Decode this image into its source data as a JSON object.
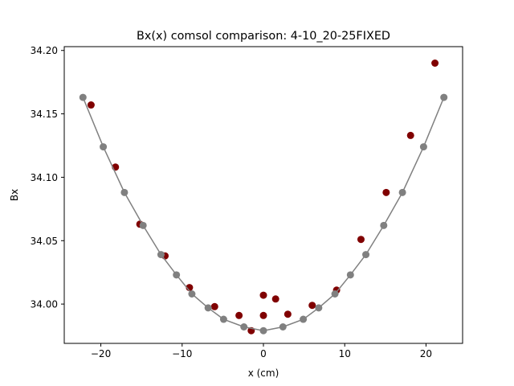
{
  "chart_data": {
    "type": "scatter",
    "title": "Bx(x) comsol comparison: 4-10_20-25FIXED",
    "xlabel": "x (cm)",
    "ylabel": "Bx",
    "xlim": [
      -24.5,
      24.5
    ],
    "ylim": [
      33.969,
      34.203
    ],
    "xticks": [
      -20,
      -10,
      0,
      10,
      20
    ],
    "yticks": [
      34.0,
      34.05,
      34.1,
      34.15,
      34.2
    ],
    "xtick_labels": [
      "−20",
      "−10",
      "0",
      "10",
      "20"
    ],
    "ytick_labels": [
      "34.00",
      "34.05",
      "34.10",
      "34.15",
      "34.20"
    ],
    "grid": false,
    "series": [
      {
        "style": "markers",
        "color": "#800000",
        "x": [
          -21.2,
          -18.2,
          -15.2,
          -12.1,
          -9.1,
          -6.0,
          -3.0,
          -1.5,
          0.0,
          0.0,
          1.5,
          3.0,
          6.0,
          9.0,
          12.0,
          15.1,
          18.1,
          21.1
        ],
        "y": [
          34.157,
          34.108,
          34.063,
          34.038,
          34.013,
          33.998,
          33.991,
          33.979,
          34.007,
          33.991,
          34.004,
          33.992,
          33.999,
          34.011,
          34.051,
          34.088,
          34.133,
          34.19
        ]
      },
      {
        "style": "line+markers",
        "color": "#808080",
        "x": [
          -22.2,
          -19.7,
          -17.1,
          -14.8,
          -12.6,
          -10.7,
          -8.8,
          -6.8,
          -4.9,
          -2.4,
          0.0,
          2.4,
          4.9,
          6.8,
          8.8,
          10.7,
          12.6,
          14.8,
          17.1,
          19.7,
          22.2
        ],
        "y": [
          34.163,
          34.124,
          34.088,
          34.062,
          34.039,
          34.023,
          34.008,
          33.997,
          33.988,
          33.982,
          33.979,
          33.982,
          33.988,
          33.997,
          34.008,
          34.023,
          34.039,
          34.062,
          34.088,
          34.124,
          34.163
        ]
      }
    ]
  }
}
